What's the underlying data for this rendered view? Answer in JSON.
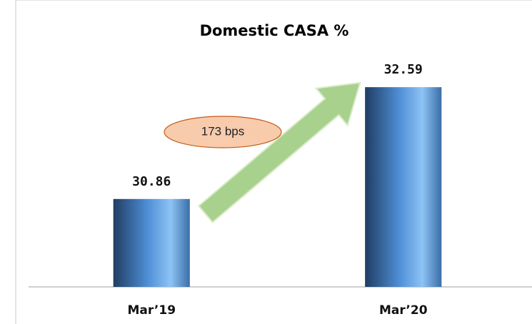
{
  "chart_data": {
    "type": "bar",
    "title": "Domestic CASA %",
    "categories": [
      "Mar’19",
      "Mar’20"
    ],
    "values": [
      30.86,
      32.59
    ],
    "color": "#4f8fd6",
    "ylim": [
      29.5,
      33
    ],
    "annotation": "173 bps",
    "grid": false
  }
}
